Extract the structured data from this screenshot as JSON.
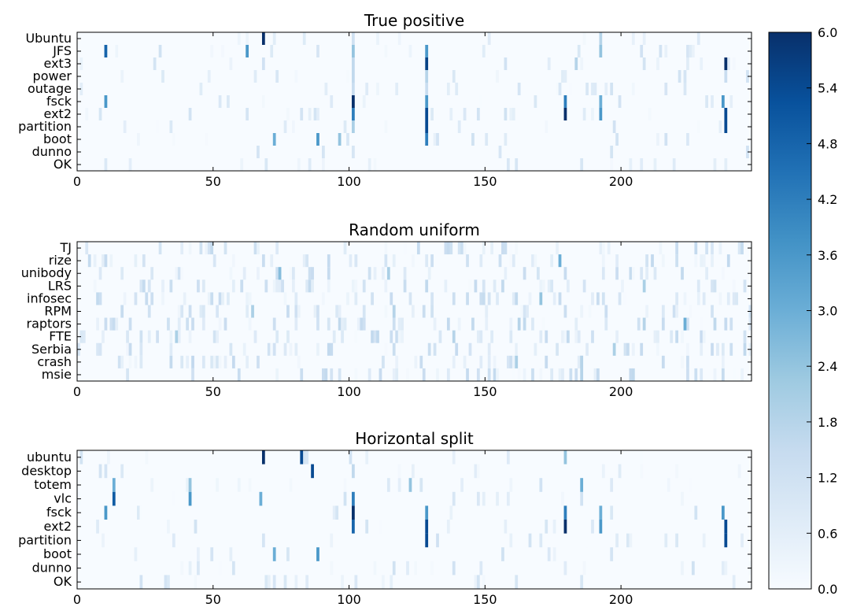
{
  "chart_data": [
    {
      "type": "heatmap",
      "title": "True positive",
      "rows": [
        "Ubuntu",
        "JFS",
        "ext3",
        "power",
        "outage",
        "fsck",
        "ext2",
        "partition",
        "boot",
        "dunno",
        "OK"
      ],
      "xlim": [
        0,
        248
      ],
      "xticks": [
        0,
        50,
        100,
        150,
        200
      ],
      "value_range": [
        0,
        6.0
      ],
      "peaks": [
        {
          "row": "Ubuntu",
          "x": 68,
          "value": 6.0
        },
        {
          "row": "Ubuntu",
          "x": 101,
          "value": 1.2
        },
        {
          "row": "Ubuntu",
          "x": 192,
          "value": 1.8
        },
        {
          "row": "JFS",
          "x": 10,
          "value": 4.8
        },
        {
          "row": "JFS",
          "x": 62,
          "value": 3.6
        },
        {
          "row": "JFS",
          "x": 101,
          "value": 2.4
        },
        {
          "row": "JFS",
          "x": 128,
          "value": 3.6
        },
        {
          "row": "JFS",
          "x": 192,
          "value": 2.4
        },
        {
          "row": "ext3",
          "x": 128,
          "value": 5.6
        },
        {
          "row": "ext3",
          "x": 238,
          "value": 6.0
        },
        {
          "row": "ext3",
          "x": 101,
          "value": 1.6
        },
        {
          "row": "ext3",
          "x": 183,
          "value": 1.8
        },
        {
          "row": "power",
          "x": 101,
          "value": 1.6
        },
        {
          "row": "power",
          "x": 128,
          "value": 1.8
        },
        {
          "row": "power",
          "x": 238,
          "value": 1.4
        },
        {
          "row": "outage",
          "x": 101,
          "value": 1.4
        },
        {
          "row": "outage",
          "x": 128,
          "value": 1.4
        },
        {
          "row": "fsck",
          "x": 10,
          "value": 3.6
        },
        {
          "row": "fsck",
          "x": 101,
          "value": 6.0
        },
        {
          "row": "fsck",
          "x": 128,
          "value": 3.6
        },
        {
          "row": "fsck",
          "x": 179,
          "value": 4.2
        },
        {
          "row": "fsck",
          "x": 192,
          "value": 3.0
        },
        {
          "row": "fsck",
          "x": 237,
          "value": 3.6
        },
        {
          "row": "ext2",
          "x": 101,
          "value": 4.2
        },
        {
          "row": "ext2",
          "x": 128,
          "value": 5.4
        },
        {
          "row": "ext2",
          "x": 179,
          "value": 6.0
        },
        {
          "row": "ext2",
          "x": 192,
          "value": 3.6
        },
        {
          "row": "ext2",
          "x": 238,
          "value": 5.4
        },
        {
          "row": "partition",
          "x": 128,
          "value": 5.4
        },
        {
          "row": "partition",
          "x": 238,
          "value": 5.4
        },
        {
          "row": "partition",
          "x": 101,
          "value": 2.0
        },
        {
          "row": "boot",
          "x": 72,
          "value": 3.0
        },
        {
          "row": "boot",
          "x": 88,
          "value": 3.6
        },
        {
          "row": "boot",
          "x": 128,
          "value": 4.2
        },
        {
          "row": "boot",
          "x": 96,
          "value": 2.4
        },
        {
          "row": "dunno",
          "x": 101,
          "value": 1.0
        },
        {
          "row": "OK",
          "x": 161,
          "value": 1.0
        },
        {
          "row": "OK",
          "x": 185,
          "value": 1.0
        }
      ]
    },
    {
      "type": "heatmap",
      "title": "Random uniform",
      "rows": [
        "TJ",
        "rize",
        "unibody",
        "LRS",
        "infosec",
        "RPM",
        "raptors",
        "FTE",
        "Serbia",
        "crash",
        "msie"
      ],
      "xlim": [
        0,
        248
      ],
      "xticks": [
        0,
        50,
        100,
        150,
        200
      ],
      "value_range": [
        0,
        6.0
      ],
      "peaks": [
        {
          "row": "rize",
          "x": 177,
          "value": 3.0
        },
        {
          "row": "unibody",
          "x": 74,
          "value": 2.6
        },
        {
          "row": "unibody",
          "x": 114,
          "value": 2.0
        },
        {
          "row": "LRS",
          "x": 208,
          "value": 2.0
        },
        {
          "row": "LRS",
          "x": 128,
          "value": 1.6
        },
        {
          "row": "infosec",
          "x": 170,
          "value": 2.4
        },
        {
          "row": "RPM",
          "x": 64,
          "value": 2.0
        },
        {
          "row": "RPM",
          "x": 116,
          "value": 1.8
        },
        {
          "row": "raptors",
          "x": 223,
          "value": 3.0
        },
        {
          "row": "raptors",
          "x": 208,
          "value": 1.8
        },
        {
          "row": "raptors",
          "x": 162,
          "value": 1.8
        },
        {
          "row": "FTE",
          "x": 36,
          "value": 2.0
        },
        {
          "row": "FTE",
          "x": 138,
          "value": 1.8
        },
        {
          "row": "Serbia",
          "x": 197,
          "value": 2.0
        },
        {
          "row": "crash",
          "x": 161,
          "value": 2.0
        },
        {
          "row": "crash",
          "x": 185,
          "value": 1.8
        },
        {
          "row": "msie",
          "x": 185,
          "value": 1.8
        }
      ]
    },
    {
      "type": "heatmap",
      "title": "Horizontal split",
      "rows": [
        "ubuntu",
        "desktop",
        "totem",
        "vlc",
        "fsck",
        "ext2",
        "partition",
        "boot",
        "dunno",
        "OK"
      ],
      "xlim": [
        0,
        248
      ],
      "xticks": [
        0,
        50,
        100,
        150,
        200
      ],
      "value_range": [
        0,
        6.0
      ],
      "peaks": [
        {
          "row": "ubuntu",
          "x": 68,
          "value": 6.0
        },
        {
          "row": "ubuntu",
          "x": 82,
          "value": 5.4
        },
        {
          "row": "ubuntu",
          "x": 179,
          "value": 2.4
        },
        {
          "row": "desktop",
          "x": 86,
          "value": 5.4
        },
        {
          "row": "desktop",
          "x": 101,
          "value": 1.6
        },
        {
          "row": "totem",
          "x": 13,
          "value": 3.0
        },
        {
          "row": "totem",
          "x": 41,
          "value": 2.4
        },
        {
          "row": "totem",
          "x": 122,
          "value": 2.4
        },
        {
          "row": "totem",
          "x": 185,
          "value": 3.0
        },
        {
          "row": "vlc",
          "x": 13,
          "value": 5.0
        },
        {
          "row": "vlc",
          "x": 41,
          "value": 3.6
        },
        {
          "row": "vlc",
          "x": 67,
          "value": 3.0
        },
        {
          "row": "vlc",
          "x": 101,
          "value": 4.2
        },
        {
          "row": "fsck",
          "x": 10,
          "value": 3.6
        },
        {
          "row": "fsck",
          "x": 101,
          "value": 6.0
        },
        {
          "row": "fsck",
          "x": 128,
          "value": 3.6
        },
        {
          "row": "fsck",
          "x": 179,
          "value": 4.2
        },
        {
          "row": "fsck",
          "x": 192,
          "value": 3.0
        },
        {
          "row": "fsck",
          "x": 237,
          "value": 3.6
        },
        {
          "row": "ext2",
          "x": 101,
          "value": 4.8
        },
        {
          "row": "ext2",
          "x": 128,
          "value": 5.4
        },
        {
          "row": "ext2",
          "x": 179,
          "value": 6.0
        },
        {
          "row": "ext2",
          "x": 192,
          "value": 3.6
        },
        {
          "row": "ext2",
          "x": 238,
          "value": 5.4
        },
        {
          "row": "partition",
          "x": 128,
          "value": 5.4
        },
        {
          "row": "partition",
          "x": 238,
          "value": 5.4
        },
        {
          "row": "boot",
          "x": 72,
          "value": 3.0
        },
        {
          "row": "boot",
          "x": 88,
          "value": 3.6
        },
        {
          "row": "OK",
          "x": 161,
          "value": 1.0
        },
        {
          "row": "OK",
          "x": 185,
          "value": 1.0
        }
      ]
    }
  ],
  "colorbar": {
    "ticks": [
      "0.0",
      "0.6",
      "1.2",
      "1.8",
      "2.4",
      "3.0",
      "3.6",
      "4.2",
      "4.8",
      "5.4",
      "6.0"
    ],
    "colormap": "Blues",
    "colors": [
      "#f7fbff",
      "#deebf7",
      "#c6dbef",
      "#9ecae1",
      "#6baed6",
      "#4292c6",
      "#2171b5",
      "#08519c",
      "#08306b"
    ]
  }
}
